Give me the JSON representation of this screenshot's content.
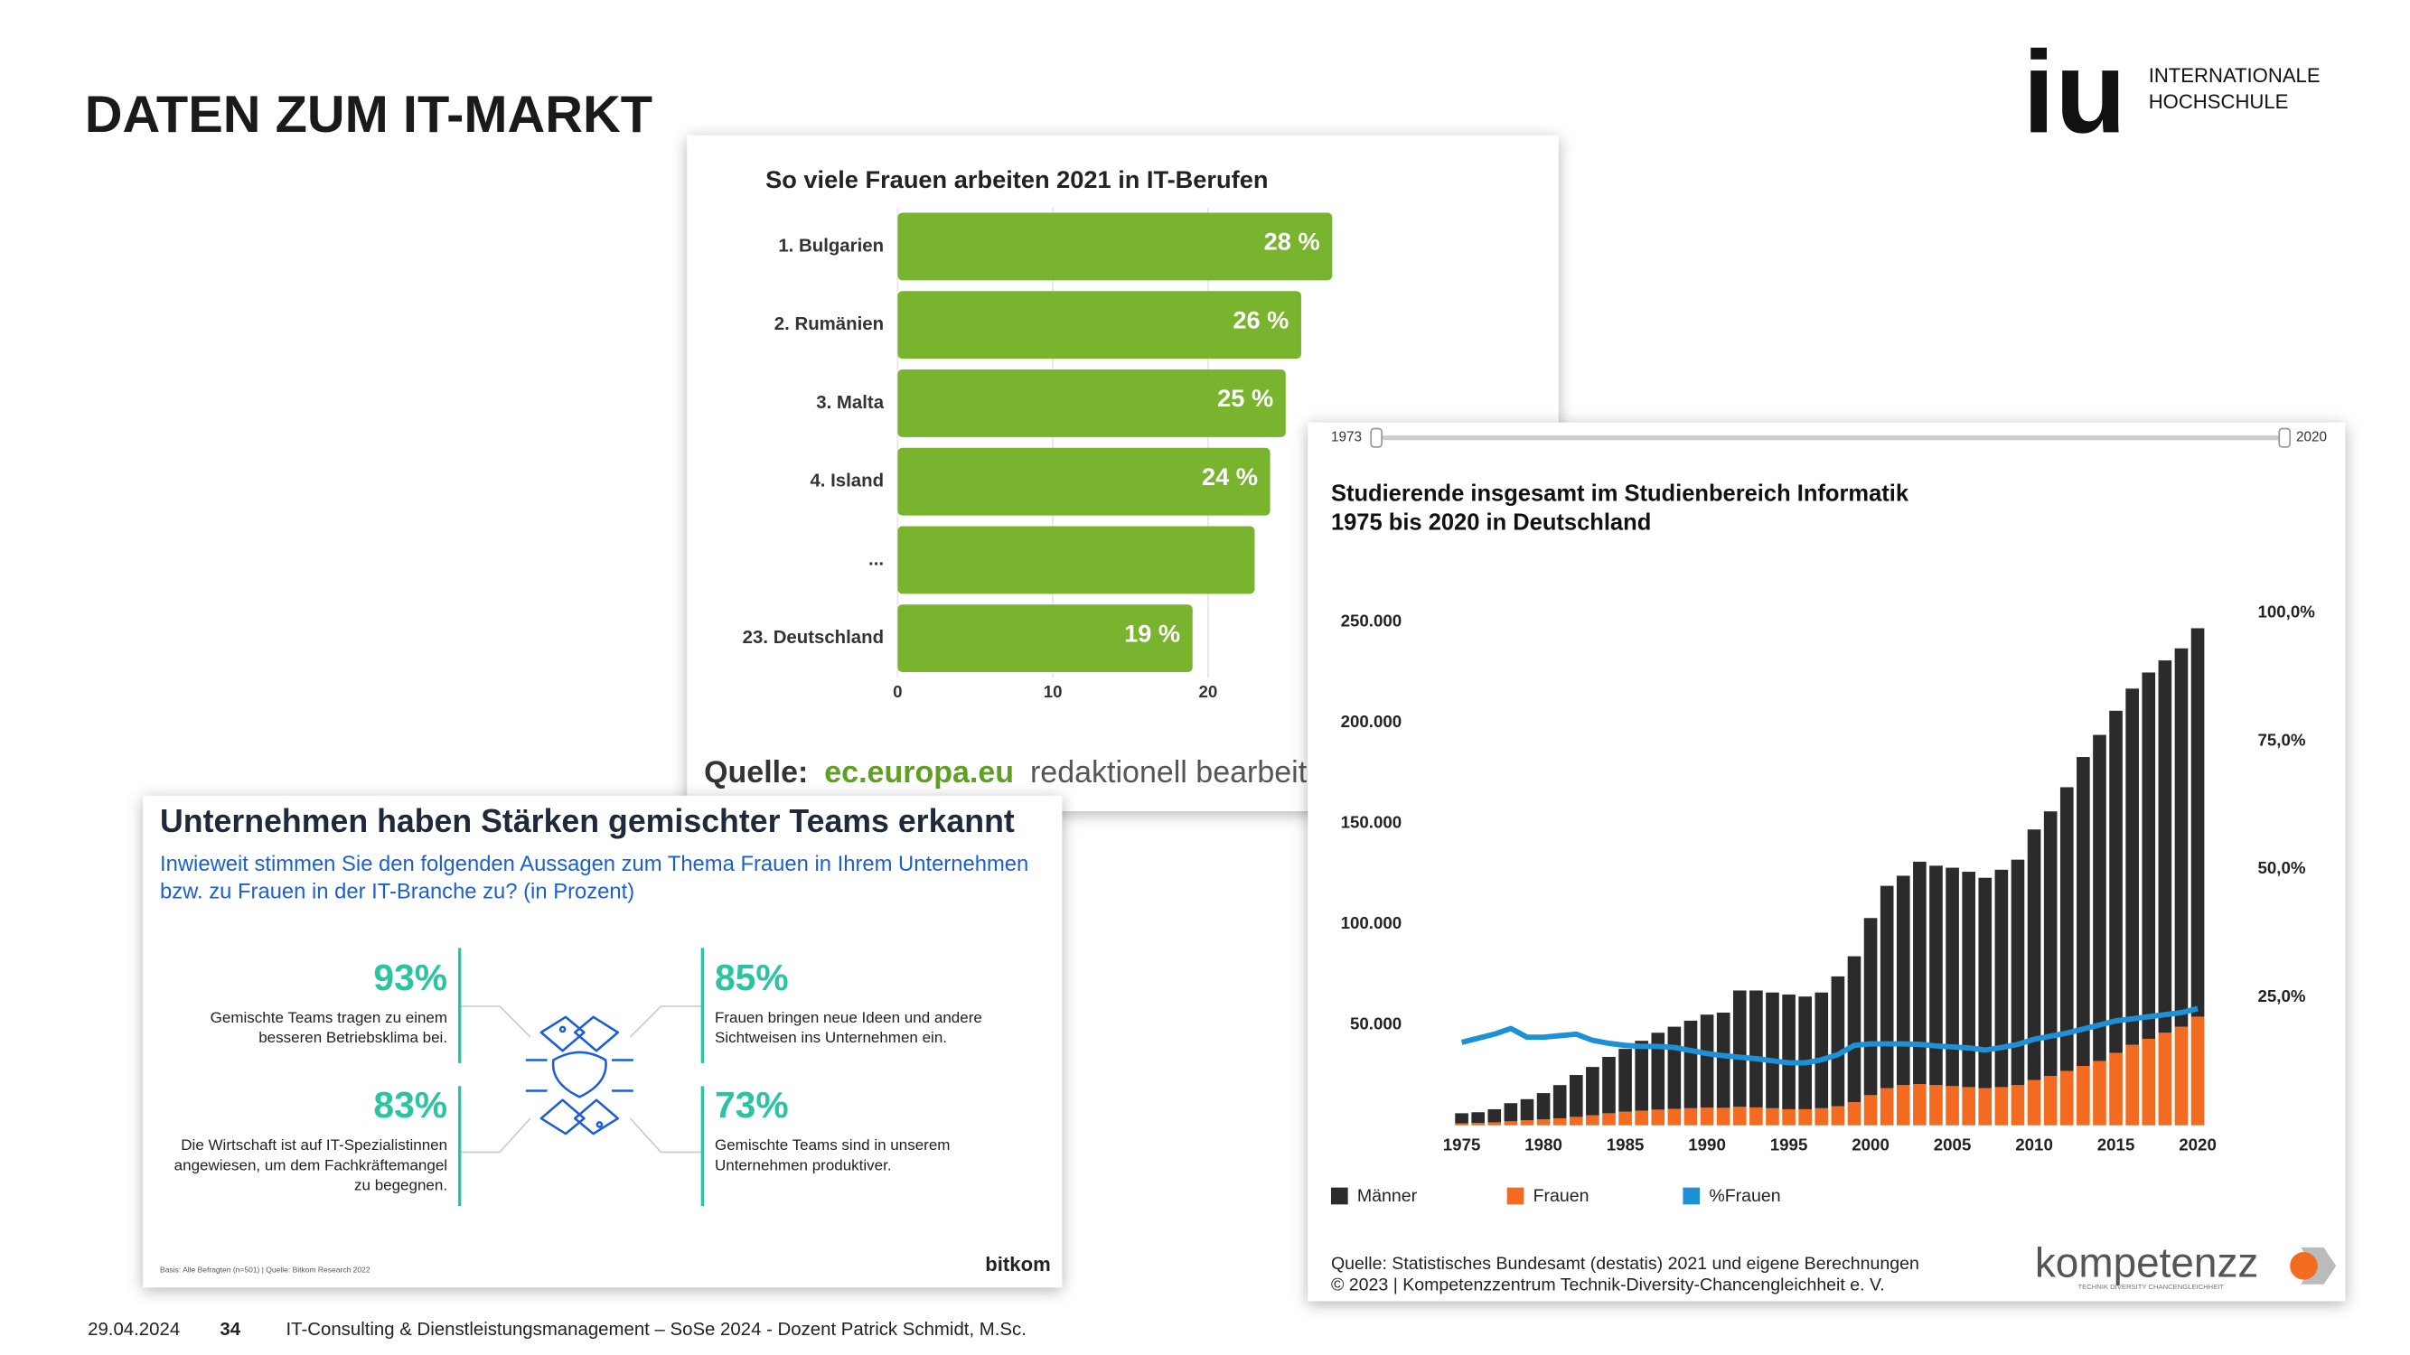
{
  "header": {
    "title": "DATEN ZUM IT-MARKT",
    "logo_mark": "iu",
    "logo_line1": "INTERNATIONALE",
    "logo_line2": "HOCHSCHULE"
  },
  "footer": {
    "date": "29.04.2024",
    "page": "34",
    "text": "IT-Consulting & Dienstleistungsmanagement – SoSe 2024 - Dozent Patrick Schmidt, M.Sc."
  },
  "bitkom": {
    "title": "Unternehmen haben Stärken gemischter Teams erkannt",
    "subtitle": [
      "Inwieweit stimmen Sie den folgenden Aussagen zum Thema Frauen in Ihrem Unternehmen",
      "bzw. zu Frauen in der IT-Branche zu? (in Prozent)"
    ],
    "items": [
      {
        "value": "93%",
        "lines": [
          "Gemischte Teams tragen zu einem",
          "besseren Betriebsklima bei."
        ]
      },
      {
        "value": "85%",
        "lines": [
          "Frauen bringen neue Ideen und andere",
          "Sichtweisen ins Unternehmen ein."
        ]
      },
      {
        "value": "83%",
        "lines": [
          "Die Wirtschaft ist auf IT-Spezialistinnen",
          "angewiesen, um dem Fachkräftemangel",
          "zu begegnen."
        ]
      },
      {
        "value": "73%",
        "lines": [
          "Gemischte Teams sind in unserem",
          "Unternehmen produktiver."
        ]
      }
    ],
    "footnote": "Basis: Alle Befragten (n=501) | Quelle: Bitkom Research 2022",
    "logo": "bitkom"
  },
  "chart_data": [
    {
      "type": "bar",
      "orientation": "horizontal",
      "title": "So viele Frauen arbeiten 2021 in IT-Berufen",
      "categories": [
        "1. Bulgarien",
        "2. Rumänien",
        "3. Malta",
        "4. Island",
        "...",
        "23. Deutschland"
      ],
      "values": [
        28,
        26,
        25,
        24,
        23,
        19
      ],
      "value_labels": [
        "28 %",
        "26 %",
        "25 %",
        "24 %",
        null,
        "19 %"
      ],
      "color": "#78b42e",
      "xlim": [
        0,
        30
      ],
      "xticks": [
        0,
        10,
        20
      ],
      "source": {
        "label": "Quelle:",
        "site": "ec.europa.eu",
        "note": "redaktionell bearbeit"
      }
    },
    {
      "type": "combo",
      "title": "Studierende insgesamt im Studienbereich Informatik",
      "subtitle": "1975 bis 2020 in Deutschland",
      "range_slider": {
        "start": "1973",
        "end": "2020"
      },
      "x": [
        1975,
        1976,
        1977,
        1978,
        1979,
        1980,
        1981,
        1982,
        1983,
        1984,
        1985,
        1986,
        1987,
        1988,
        1989,
        1990,
        1991,
        1992,
        1993,
        1994,
        1995,
        1996,
        1997,
        1998,
        1999,
        2000,
        2001,
        2002,
        2003,
        2004,
        2005,
        2006,
        2007,
        2008,
        2009,
        2010,
        2011,
        2012,
        2013,
        2014,
        2015,
        2016,
        2017,
        2018,
        2019,
        2020
      ],
      "xlim": [
        1974,
        2021
      ],
      "xticks": [
        1975,
        1980,
        1985,
        1990,
        1995,
        2000,
        2005,
        2010,
        2015,
        2020
      ],
      "ylim": [
        0,
        250000
      ],
      "yticks": [
        {
          "value": 50000,
          "label": "50.000"
        },
        {
          "value": 100000,
          "label": "100.000"
        },
        {
          "value": 150000,
          "label": "150.000"
        },
        {
          "value": 200000,
          "label": "200.000"
        },
        {
          "value": 250000,
          "label": "250.000"
        }
      ],
      "y2lim": [
        0,
        100
      ],
      "y2ticks": [
        {
          "value": 25,
          "label": "25,0%"
        },
        {
          "value": 50,
          "label": "50,0%"
        },
        {
          "value": 75,
          "label": "75,0%"
        },
        {
          "value": 100,
          "label": "100,0%"
        }
      ],
      "stacked": true,
      "series": [
        {
          "name": "Männer",
          "color": "#2b2b2b",
          "values": [
            5000,
            5300,
            6500,
            9000,
            10500,
            13000,
            16500,
            20800,
            24000,
            28000,
            31200,
            34700,
            38200,
            40800,
            43500,
            46200,
            47300,
            57800,
            58100,
            57500,
            57000,
            56000,
            57500,
            64500,
            72500,
            88000,
            100500,
            104000,
            110500,
            109000,
            108500,
            107000,
            104500,
            108000,
            112000,
            124500,
            131500,
            141000,
            153500,
            162000,
            170000,
            177000,
            182000,
            185000,
            188000,
            193000
          ]
        },
        {
          "name": "Frauen",
          "color": "#f26b21",
          "values": [
            1000,
            1200,
            1500,
            2000,
            2500,
            3000,
            3500,
            4200,
            5000,
            6000,
            6800,
            7300,
            7800,
            8200,
            8500,
            8800,
            8700,
            9200,
            8900,
            8500,
            8000,
            8000,
            8500,
            9500,
            11500,
            15000,
            18500,
            20000,
            20500,
            20000,
            19500,
            19000,
            18500,
            19000,
            20000,
            22500,
            24500,
            27000,
            29500,
            32000,
            36000,
            40000,
            43000,
            46000,
            49000,
            54000
          ]
        },
        {
          "name": "%Frauen",
          "color": "#1e90d6",
          "axis": "y2",
          "values": [
            16.2,
            17,
            17.8,
            18.9,
            17.2,
            17.2,
            17.5,
            17.8,
            16.6,
            16,
            15.6,
            15.4,
            15.4,
            15.2,
            14.6,
            14,
            13.6,
            13.3,
            13,
            12.6,
            12.2,
            12.2,
            12.8,
            13.8,
            15.6,
            15.9,
            15.9,
            15.9,
            15.8,
            15.5,
            15.3,
            15.1,
            14.7,
            15.2,
            15.8,
            16.8,
            17.4,
            18,
            18.8,
            19.6,
            20.4,
            20.8,
            21.2,
            21.6,
            22,
            22.8
          ]
        }
      ],
      "source": [
        "Quelle: Statistisches Bundesamt (destatis) 2021 und eigene Berechnungen",
        "© 2023 | Kompetenzzentrum Technik-Diversity-Chancengleichheit e. V."
      ],
      "logo": "kompetenzz",
      "logo_tagline": "TECHNIK DIVERSITY CHANCENGLEICHHEIT"
    }
  ]
}
